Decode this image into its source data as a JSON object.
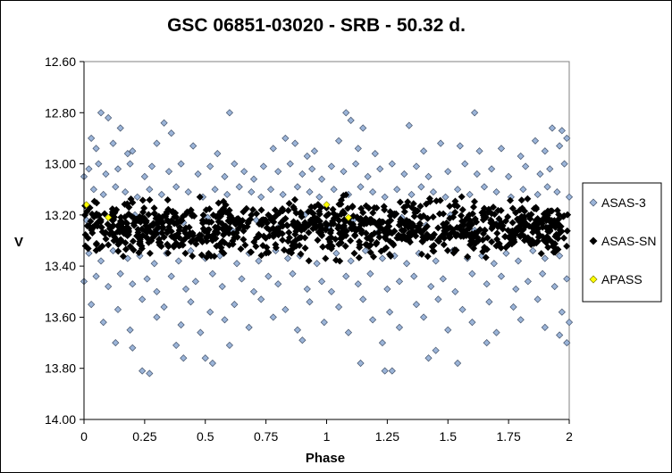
{
  "chart_data": {
    "type": "scatter",
    "title": "GSC 06851-03020  - SRB - 50.32 d.",
    "xlabel": "Phase",
    "ylabel": "V",
    "xlim": [
      0,
      2
    ],
    "ylim": [
      12.6,
      14.0
    ],
    "y_inverted": true,
    "grid": false,
    "legend_position": "right",
    "x_ticks": [
      "0",
      "0.25",
      "0.5",
      "0.75",
      "1",
      "1.25",
      "1.5",
      "1.75",
      "2"
    ],
    "x_tick_values": [
      0,
      0.25,
      0.5,
      0.75,
      1,
      1.25,
      1.5,
      1.75,
      2
    ],
    "y_ticks": [
      "12.60",
      "12.80",
      "13.00",
      "13.20",
      "13.40",
      "13.60",
      "13.80",
      "14.00"
    ],
    "y_tick_values": [
      12.6,
      12.8,
      13.0,
      13.2,
      13.4,
      13.6,
      13.8,
      14.0
    ],
    "series": [
      {
        "name": "ASAS-3",
        "color": "#9BB4D8",
        "marker": "diamond",
        "points": [
          [
            0.07,
            12.8
          ],
          [
            0.6,
            12.8
          ],
          [
            1.08,
            12.8
          ],
          [
            1.61,
            12.8
          ],
          [
            0.1,
            12.82
          ],
          [
            1.1,
            12.83
          ],
          [
            0.15,
            12.86
          ],
          [
            0.33,
            12.84
          ],
          [
            0.36,
            12.88
          ],
          [
            1.15,
            12.86
          ],
          [
            1.34,
            12.85
          ],
          [
            0.03,
            12.9
          ],
          [
            0.05,
            12.94
          ],
          [
            0.12,
            12.92
          ],
          [
            0.18,
            12.96
          ],
          [
            0.2,
            12.95
          ],
          [
            0.3,
            12.92
          ],
          [
            0.45,
            12.93
          ],
          [
            0.55,
            12.96
          ],
          [
            0.78,
            12.94
          ],
          [
            0.83,
            12.9
          ],
          [
            0.87,
            12.92
          ],
          [
            0.92,
            12.97
          ],
          [
            0.95,
            12.95
          ],
          [
            1.05,
            12.91
          ],
          [
            1.13,
            12.94
          ],
          [
            1.2,
            12.96
          ],
          [
            1.4,
            12.95
          ],
          [
            1.47,
            12.92
          ],
          [
            1.55,
            12.93
          ],
          [
            1.63,
            12.95
          ],
          [
            1.72,
            12.94
          ],
          [
            1.8,
            12.97
          ],
          [
            1.86,
            12.91
          ],
          [
            1.9,
            12.95
          ],
          [
            1.93,
            12.86
          ],
          [
            1.97,
            12.87
          ],
          [
            1.99,
            12.9
          ],
          [
            1.96,
            12.93
          ],
          [
            0.0,
            13.05
          ],
          [
            0.02,
            13.02
          ],
          [
            0.06,
            13.0
          ],
          [
            0.09,
            13.04
          ],
          [
            0.14,
            13.02
          ],
          [
            0.19,
            13.0
          ],
          [
            0.25,
            13.05
          ],
          [
            0.28,
            13.01
          ],
          [
            0.35,
            13.03
          ],
          [
            0.4,
            13.0
          ],
          [
            0.47,
            13.04
          ],
          [
            0.52,
            13.01
          ],
          [
            0.58,
            13.05
          ],
          [
            0.62,
            13.0
          ],
          [
            0.66,
            13.03
          ],
          [
            0.7,
            13.06
          ],
          [
            0.74,
            13.01
          ],
          [
            0.8,
            13.03
          ],
          [
            0.85,
            13.0
          ],
          [
            0.9,
            13.04
          ],
          [
            0.94,
            13.02
          ],
          [
            0.98,
            13.06
          ],
          [
            1.02,
            13.01
          ],
          [
            1.07,
            13.03
          ],
          [
            1.12,
            13.0
          ],
          [
            1.17,
            13.05
          ],
          [
            1.22,
            13.02
          ],
          [
            1.27,
            13.0
          ],
          [
            1.32,
            13.04
          ],
          [
            1.37,
            13.01
          ],
          [
            1.42,
            13.05
          ],
          [
            1.5,
            13.03
          ],
          [
            1.57,
            13.0
          ],
          [
            1.62,
            13.04
          ],
          [
            1.68,
            13.02
          ],
          [
            1.75,
            13.05
          ],
          [
            1.82,
            13.01
          ],
          [
            1.88,
            13.04
          ],
          [
            1.92,
            13.02
          ],
          [
            1.98,
            13.0
          ],
          [
            0.04,
            13.1
          ],
          [
            0.08,
            13.12
          ],
          [
            0.13,
            13.09
          ],
          [
            0.17,
            13.11
          ],
          [
            0.22,
            13.13
          ],
          [
            0.27,
            13.1
          ],
          [
            0.32,
            13.12
          ],
          [
            0.38,
            13.09
          ],
          [
            0.43,
            13.11
          ],
          [
            0.49,
            13.13
          ],
          [
            0.54,
            13.1
          ],
          [
            0.59,
            13.12
          ],
          [
            0.64,
            13.09
          ],
          [
            0.69,
            13.11
          ],
          [
            0.73,
            13.13
          ],
          [
            0.77,
            13.1
          ],
          [
            0.82,
            13.12
          ],
          [
            0.88,
            13.09
          ],
          [
            0.93,
            13.11
          ],
          [
            0.97,
            13.13
          ],
          [
            1.03,
            13.1
          ],
          [
            1.09,
            13.12
          ],
          [
            1.14,
            13.09
          ],
          [
            1.19,
            13.11
          ],
          [
            1.24,
            13.13
          ],
          [
            1.29,
            13.1
          ],
          [
            1.35,
            13.12
          ],
          [
            1.39,
            13.09
          ],
          [
            1.44,
            13.11
          ],
          [
            1.49,
            13.13
          ],
          [
            1.54,
            13.1
          ],
          [
            1.59,
            13.12
          ],
          [
            1.65,
            13.09
          ],
          [
            1.7,
            13.11
          ],
          [
            1.76,
            13.13
          ],
          [
            1.81,
            13.1
          ],
          [
            1.87,
            13.12
          ],
          [
            1.91,
            13.09
          ],
          [
            1.95,
            13.11
          ],
          [
            2.0,
            13.13
          ],
          [
            0.01,
            13.22
          ],
          [
            0.11,
            13.25
          ],
          [
            0.21,
            13.2
          ],
          [
            0.31,
            13.27
          ],
          [
            0.41,
            13.23
          ],
          [
            0.51,
            13.21
          ],
          [
            0.61,
            13.26
          ],
          [
            0.71,
            13.22
          ],
          [
            0.81,
            13.24
          ],
          [
            0.91,
            13.2
          ],
          [
            1.01,
            13.25
          ],
          [
            1.11,
            13.22
          ],
          [
            1.21,
            13.27
          ],
          [
            1.31,
            13.21
          ],
          [
            1.41,
            13.24
          ],
          [
            1.51,
            13.2
          ],
          [
            1.61,
            13.26
          ],
          [
            1.71,
            13.23
          ],
          [
            1.81,
            13.21
          ],
          [
            1.91,
            13.25
          ],
          [
            0.02,
            13.35
          ],
          [
            0.07,
            13.38
          ],
          [
            0.12,
            13.34
          ],
          [
            0.18,
            13.37
          ],
          [
            0.23,
            13.36
          ],
          [
            0.29,
            13.39
          ],
          [
            0.34,
            13.35
          ],
          [
            0.39,
            13.38
          ],
          [
            0.44,
            13.34
          ],
          [
            0.5,
            13.37
          ],
          [
            0.56,
            13.36
          ],
          [
            0.63,
            13.39
          ],
          [
            0.68,
            13.35
          ],
          [
            0.72,
            13.38
          ],
          [
            0.79,
            13.34
          ],
          [
            0.84,
            13.37
          ],
          [
            0.89,
            13.36
          ],
          [
            0.96,
            13.39
          ],
          [
            1.04,
            13.35
          ],
          [
            1.1,
            13.38
          ],
          [
            1.16,
            13.34
          ],
          [
            1.23,
            13.37
          ],
          [
            1.28,
            13.36
          ],
          [
            1.33,
            13.39
          ],
          [
            1.38,
            13.35
          ],
          [
            1.45,
            13.38
          ],
          [
            1.52,
            13.34
          ],
          [
            1.58,
            13.37
          ],
          [
            1.64,
            13.36
          ],
          [
            1.69,
            13.39
          ],
          [
            1.74,
            13.35
          ],
          [
            1.79,
            13.38
          ],
          [
            1.85,
            13.34
          ],
          [
            1.9,
            13.37
          ],
          [
            1.96,
            13.36
          ],
          [
            0.0,
            13.46
          ],
          [
            0.05,
            13.44
          ],
          [
            0.1,
            13.48
          ],
          [
            0.15,
            13.43
          ],
          [
            0.2,
            13.47
          ],
          [
            0.26,
            13.45
          ],
          [
            0.3,
            13.5
          ],
          [
            0.36,
            13.44
          ],
          [
            0.42,
            13.49
          ],
          [
            0.46,
            13.46
          ],
          [
            0.53,
            13.43
          ],
          [
            0.57,
            13.48
          ],
          [
            0.65,
            13.45
          ],
          [
            0.7,
            13.5
          ],
          [
            0.76,
            13.44
          ],
          [
            0.8,
            13.47
          ],
          [
            0.86,
            13.43
          ],
          [
            0.92,
            13.49
          ],
          [
            0.98,
            13.46
          ],
          [
            1.02,
            13.5
          ],
          [
            1.08,
            13.44
          ],
          [
            1.13,
            13.47
          ],
          [
            1.18,
            13.43
          ],
          [
            1.25,
            13.49
          ],
          [
            1.3,
            13.46
          ],
          [
            1.36,
            13.44
          ],
          [
            1.43,
            13.48
          ],
          [
            1.48,
            13.45
          ],
          [
            1.53,
            13.5
          ],
          [
            1.6,
            13.43
          ],
          [
            1.66,
            13.47
          ],
          [
            1.72,
            13.44
          ],
          [
            1.78,
            13.49
          ],
          [
            1.83,
            13.46
          ],
          [
            1.89,
            13.43
          ],
          [
            1.94,
            13.48
          ],
          [
            1.99,
            13.45
          ],
          [
            0.03,
            13.55
          ],
          [
            0.14,
            13.57
          ],
          [
            0.24,
            13.53
          ],
          [
            0.33,
            13.56
          ],
          [
            0.44,
            13.54
          ],
          [
            0.52,
            13.58
          ],
          [
            0.62,
            13.55
          ],
          [
            0.73,
            13.53
          ],
          [
            0.83,
            13.57
          ],
          [
            0.93,
            13.54
          ],
          [
            1.05,
            13.56
          ],
          [
            1.15,
            13.53
          ],
          [
            1.26,
            13.58
          ],
          [
            1.37,
            13.55
          ],
          [
            1.46,
            13.53
          ],
          [
            1.56,
            13.57
          ],
          [
            1.67,
            13.54
          ],
          [
            1.77,
            13.56
          ],
          [
            1.87,
            13.53
          ],
          [
            1.97,
            13.58
          ],
          [
            0.08,
            13.62
          ],
          [
            0.19,
            13.65
          ],
          [
            0.3,
            13.6
          ],
          [
            0.4,
            13.63
          ],
          [
            0.48,
            13.66
          ],
          [
            0.58,
            13.61
          ],
          [
            0.68,
            13.64
          ],
          [
            0.78,
            13.6
          ],
          [
            0.88,
            13.65
          ],
          [
            0.99,
            13.62
          ],
          [
            1.09,
            13.66
          ],
          [
            1.19,
            13.61
          ],
          [
            1.3,
            13.64
          ],
          [
            1.4,
            13.6
          ],
          [
            1.5,
            13.65
          ],
          [
            1.6,
            13.62
          ],
          [
            1.7,
            13.66
          ],
          [
            1.8,
            13.61
          ],
          [
            1.9,
            13.64
          ],
          [
            2.0,
            13.62
          ],
          [
            0.13,
            13.7
          ],
          [
            0.2,
            13.72
          ],
          [
            0.38,
            13.71
          ],
          [
            0.6,
            13.71
          ],
          [
            0.9,
            13.69
          ],
          [
            1.23,
            13.7
          ],
          [
            1.45,
            13.73
          ],
          [
            1.66,
            13.7
          ],
          [
            1.99,
            13.7
          ],
          [
            1.96,
            13.67
          ],
          [
            0.41,
            13.76
          ],
          [
            0.5,
            13.76
          ],
          [
            0.53,
            13.78
          ],
          [
            1.42,
            13.76
          ],
          [
            1.54,
            13.78
          ],
          [
            1.14,
            13.78
          ],
          [
            0.24,
            13.81
          ],
          [
            0.27,
            13.82
          ],
          [
            1.24,
            13.81
          ],
          [
            1.27,
            13.81
          ]
        ]
      },
      {
        "name": "ASAS-SN",
        "color": "#000000",
        "marker": "diamond",
        "band_min": 13.1,
        "band_max": 13.4,
        "band_center": 13.25,
        "point_count": 1000
      },
      {
        "name": "APASS",
        "color": "#FFFF00",
        "marker": "diamond",
        "points": [
          [
            0.01,
            13.16
          ],
          [
            0.1,
            13.21
          ],
          [
            1.0,
            13.16
          ],
          [
            1.09,
            13.21
          ]
        ]
      }
    ],
    "legend": [
      "ASAS-3",
      "ASAS-SN",
      "APASS"
    ]
  }
}
